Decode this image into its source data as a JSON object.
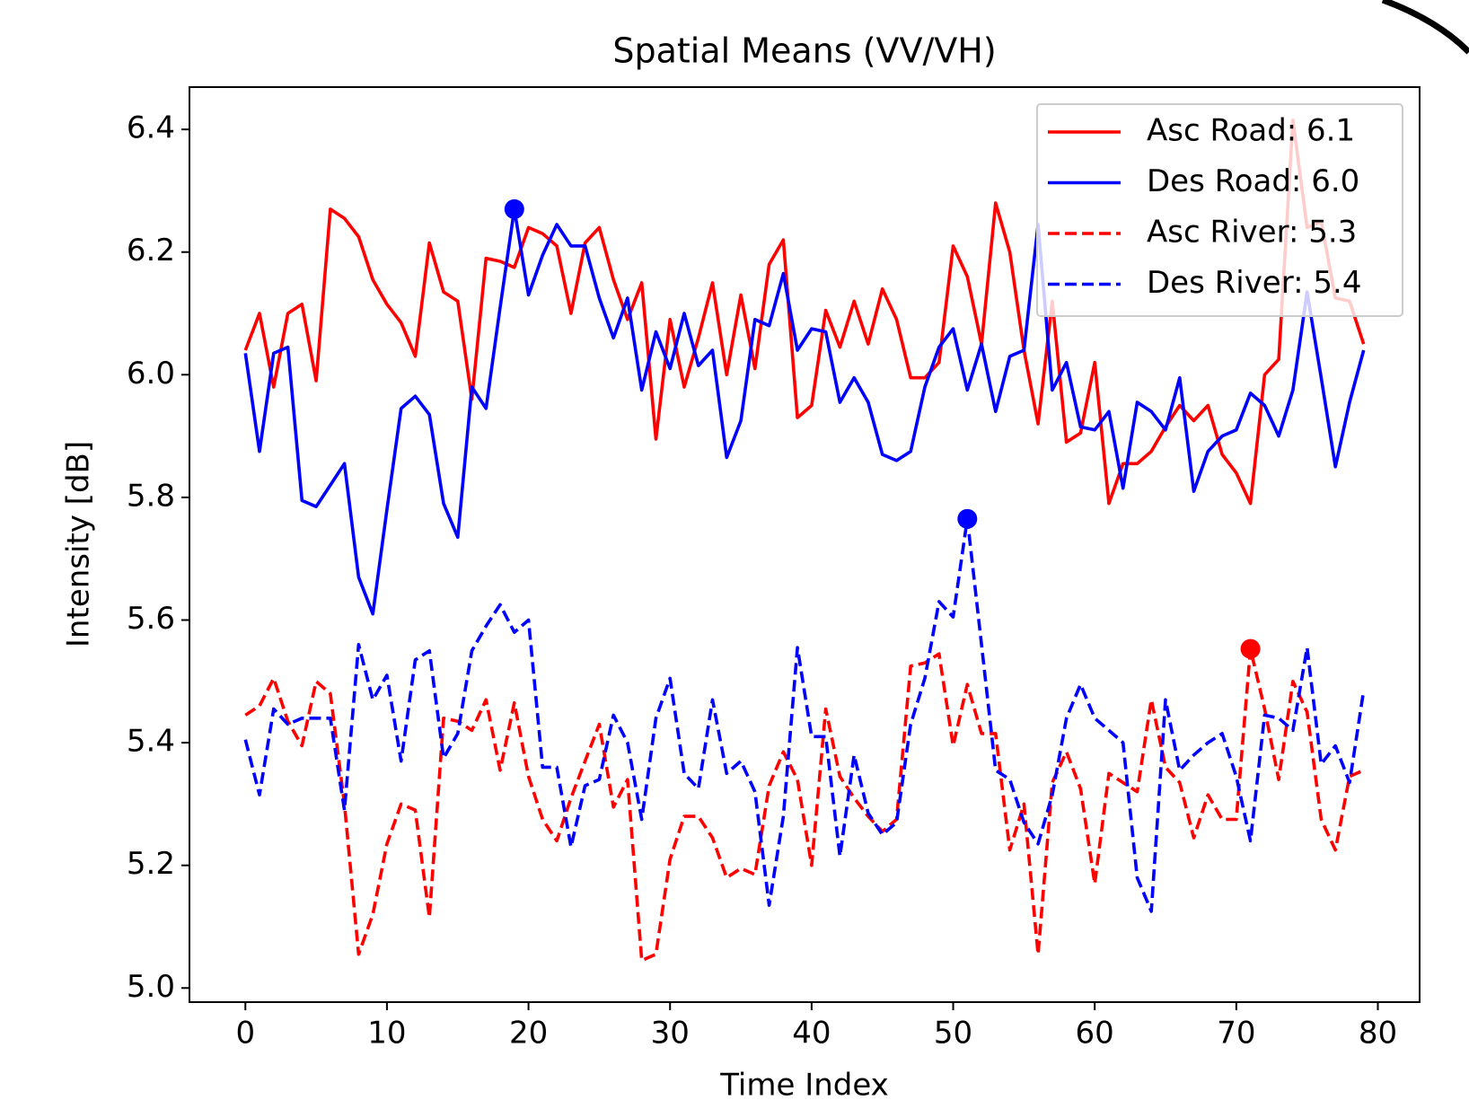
{
  "chart_data": {
    "type": "line",
    "title": "Spatial Means (VV/VH)",
    "x_label": "Time Index",
    "y_label": "Intensity [dB]",
    "x": [
      0,
      1,
      2,
      3,
      4,
      5,
      6,
      7,
      8,
      9,
      10,
      11,
      12,
      13,
      14,
      15,
      16,
      17,
      18,
      19,
      20,
      21,
      22,
      23,
      24,
      25,
      26,
      27,
      28,
      29,
      30,
      31,
      32,
      33,
      34,
      35,
      36,
      37,
      38,
      39,
      40,
      41,
      42,
      43,
      44,
      45,
      46,
      47,
      48,
      49,
      50,
      51,
      52,
      53,
      54,
      55,
      56,
      57,
      58,
      59,
      60,
      61,
      62,
      63,
      64,
      65,
      66,
      67,
      68,
      69,
      70,
      71,
      72,
      73,
      74,
      75,
      76,
      77,
      78,
      79
    ],
    "series": [
      {
        "name": "Asc Road: 6.1",
        "color": "#ff0000",
        "linestyle": "solid",
        "values": [
          6.04,
          6.1,
          5.98,
          6.1,
          6.115,
          5.99,
          6.27,
          6.255,
          6.225,
          6.155,
          6.115,
          6.085,
          6.03,
          6.215,
          6.135,
          6.12,
          5.96,
          6.19,
          6.185,
          6.175,
          6.24,
          6.23,
          6.21,
          6.1,
          6.215,
          6.24,
          6.155,
          6.09,
          6.15,
          5.895,
          6.09,
          5.98,
          6.06,
          6.15,
          6.0,
          6.13,
          6.01,
          6.18,
          6.22,
          5.93,
          5.95,
          6.105,
          6.045,
          6.12,
          6.05,
          6.14,
          6.09,
          5.995,
          5.995,
          6.02,
          6.21,
          6.16,
          6.05,
          6.28,
          6.2,
          6.04,
          5.92,
          6.12,
          5.89,
          5.905,
          6.02,
          5.79,
          5.855,
          5.855,
          5.875,
          5.915,
          5.95,
          5.925,
          5.95,
          5.87,
          5.84,
          5.79,
          6.0,
          6.025,
          6.415,
          6.24,
          6.25,
          6.125,
          6.12,
          6.05
        ]
      },
      {
        "name": "Des Road: 6.0",
        "color": "#0000ff",
        "linestyle": "solid",
        "values": [
          6.035,
          5.875,
          6.035,
          6.045,
          5.795,
          5.785,
          5.82,
          5.855,
          5.67,
          5.61,
          5.78,
          5.945,
          5.965,
          5.935,
          5.79,
          5.735,
          5.98,
          5.945,
          6.11,
          6.27,
          6.13,
          6.195,
          6.245,
          6.21,
          6.21,
          6.125,
          6.06,
          6.125,
          5.975,
          6.07,
          6.01,
          6.1,
          6.015,
          6.04,
          5.865,
          5.925,
          6.09,
          6.08,
          6.165,
          6.04,
          6.075,
          6.07,
          5.955,
          5.995,
          5.955,
          5.87,
          5.86,
          5.875,
          5.98,
          6.045,
          6.075,
          5.975,
          6.05,
          5.94,
          6.03,
          6.04,
          6.245,
          5.975,
          6.02,
          5.915,
          5.91,
          5.94,
          5.815,
          5.955,
          5.94,
          5.91,
          5.995,
          5.81,
          5.875,
          5.9,
          5.91,
          5.97,
          5.95,
          5.9,
          5.975,
          6.135,
          5.995,
          5.85,
          5.955,
          6.04
        ]
      },
      {
        "name": "Asc River: 5.3",
        "color": "#ff0000",
        "linestyle": "dashed",
        "values": [
          5.445,
          5.46,
          5.505,
          5.435,
          5.395,
          5.5,
          5.48,
          5.3,
          5.055,
          5.12,
          5.235,
          5.3,
          5.29,
          5.115,
          5.44,
          5.435,
          5.42,
          5.47,
          5.355,
          5.465,
          5.345,
          5.275,
          5.24,
          5.31,
          5.37,
          5.43,
          5.295,
          5.34,
          5.045,
          5.055,
          5.21,
          5.28,
          5.28,
          5.245,
          5.18,
          5.195,
          5.185,
          5.33,
          5.385,
          5.34,
          5.2,
          5.455,
          5.345,
          5.31,
          5.28,
          5.255,
          5.275,
          5.525,
          5.53,
          5.545,
          5.395,
          5.495,
          5.415,
          5.415,
          5.225,
          5.3,
          5.055,
          5.335,
          5.385,
          5.325,
          5.17,
          5.35,
          5.335,
          5.32,
          5.47,
          5.36,
          5.335,
          5.245,
          5.315,
          5.275,
          5.275,
          5.553,
          5.455,
          5.34,
          5.5,
          5.45,
          5.275,
          5.225,
          5.345,
          5.355
        ]
      },
      {
        "name": "Des River: 5.4",
        "color": "#0000ff",
        "linestyle": "dashed",
        "values": [
          5.405,
          5.315,
          5.455,
          5.43,
          5.44,
          5.44,
          5.44,
          5.29,
          5.56,
          5.47,
          5.51,
          5.37,
          5.535,
          5.55,
          5.375,
          5.415,
          5.55,
          5.59,
          5.625,
          5.58,
          5.6,
          5.36,
          5.36,
          5.23,
          5.33,
          5.34,
          5.445,
          5.4,
          5.275,
          5.44,
          5.505,
          5.35,
          5.325,
          5.47,
          5.35,
          5.37,
          5.32,
          5.135,
          5.28,
          5.555,
          5.41,
          5.41,
          5.215,
          5.38,
          5.285,
          5.25,
          5.27,
          5.43,
          5.505,
          5.63,
          5.605,
          5.765,
          5.56,
          5.355,
          5.34,
          5.27,
          5.235,
          5.315,
          5.44,
          5.495,
          5.44,
          5.42,
          5.4,
          5.18,
          5.125,
          5.47,
          5.355,
          5.38,
          5.4,
          5.415,
          5.345,
          5.24,
          5.445,
          5.44,
          5.42,
          5.555,
          5.365,
          5.395,
          5.335,
          5.485
        ]
      }
    ],
    "markers": [
      {
        "x": 19,
        "y": 6.27,
        "color": "#0000ff"
      },
      {
        "x": 51,
        "y": 5.765,
        "color": "#0000ff"
      },
      {
        "x": 71,
        "y": 5.553,
        "color": "#ff0000"
      }
    ],
    "xlim": [
      -3.95,
      82.95
    ],
    "ylim": [
      4.977,
      6.469
    ],
    "xticks": [
      0,
      10,
      20,
      30,
      40,
      50,
      60,
      70,
      80
    ],
    "yticks": [
      {
        "value": 5,
        "label": "5.0"
      },
      5.2,
      5.4,
      5.6,
      5.8,
      {
        "value": 6,
        "label": "6.0"
      },
      6.2,
      6.4
    ],
    "legend": "upper right",
    "grid": false
  }
}
